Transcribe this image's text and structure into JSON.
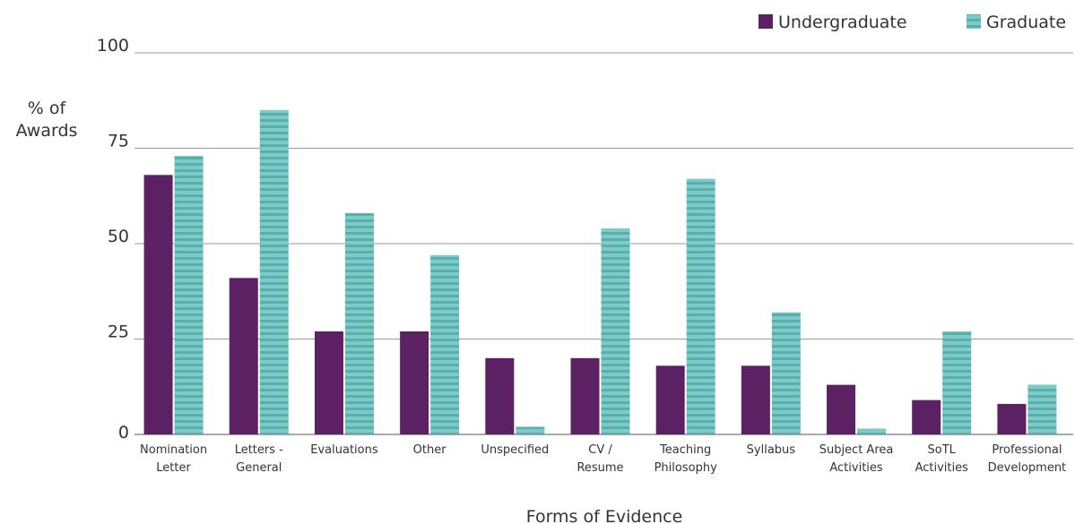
{
  "chart_data": {
    "type": "bar",
    "categories": [
      [
        "Nomination",
        "Letter"
      ],
      [
        "Letters -",
        "General"
      ],
      [
        "Evaluations"
      ],
      [
        "Other"
      ],
      [
        "Unspecified"
      ],
      [
        "CV /",
        "Resume"
      ],
      [
        "Teaching",
        "Philosophy"
      ],
      [
        "Syllabus"
      ],
      [
        "Subject Area",
        "Activities"
      ],
      [
        "SoTL",
        "Activities"
      ],
      [
        "Professional",
        "Development"
      ]
    ],
    "series": [
      {
        "name": "Undergraduate",
        "color": "#5b2163",
        "values": [
          68,
          41,
          27,
          27,
          20,
          20,
          18,
          18,
          13,
          9,
          8
        ]
      },
      {
        "name": "Graduate",
        "color": "#7ccbc8",
        "stripe_color": "#5aaeab",
        "values": [
          73,
          85,
          58,
          47,
          2,
          54,
          67,
          32,
          1.5,
          27,
          13
        ]
      }
    ],
    "yticks": [
      0,
      25,
      50,
      75,
      100
    ],
    "ylim": [
      0,
      100
    ],
    "ylabel": [
      "% of",
      "Awards"
    ],
    "xlabel": "Forms of Evidence",
    "legend_position": "top-right",
    "grid": true
  }
}
